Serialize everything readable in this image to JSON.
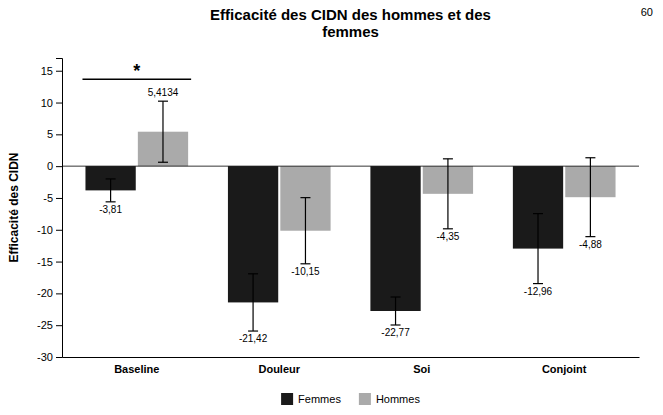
{
  "chart_data": {
    "type": "bar",
    "title": "Efficacité des CIDN des hommes et des\nfemmes",
    "ylabel": "Efficacité des CIDN",
    "categories": [
      "Baseline",
      "Douleur",
      "Soi",
      "Conjoint"
    ],
    "series": [
      {
        "name": "Femmes",
        "color": "#1a1a1a",
        "values": [
          -3.81,
          -21.42,
          -22.77,
          -12.96
        ],
        "errors": [
          1.8,
          4.5,
          2.2,
          5.5
        ],
        "value_labels": [
          "-3,81",
          "-21,42",
          "-22,77",
          "-12,96"
        ]
      },
      {
        "name": "Hommes",
        "color": "#aaaaaa",
        "values": [
          5.4134,
          -10.15,
          -4.35,
          -4.88
        ],
        "errors": [
          4.8,
          5.2,
          5.5,
          6.2
        ],
        "value_labels": [
          "5,4134",
          "-10,15",
          "-4,35",
          "-4,88"
        ]
      }
    ],
    "ylim": [
      -30,
      17
    ],
    "yticks": [
      -30,
      -25,
      -20,
      -15,
      -10,
      -5,
      0,
      5,
      10,
      15
    ],
    "grid": false,
    "legend": "bottom",
    "data_labels": true,
    "annotations": [
      {
        "text": "*",
        "category": "Baseline"
      },
      {
        "text": "60"
      }
    ]
  }
}
